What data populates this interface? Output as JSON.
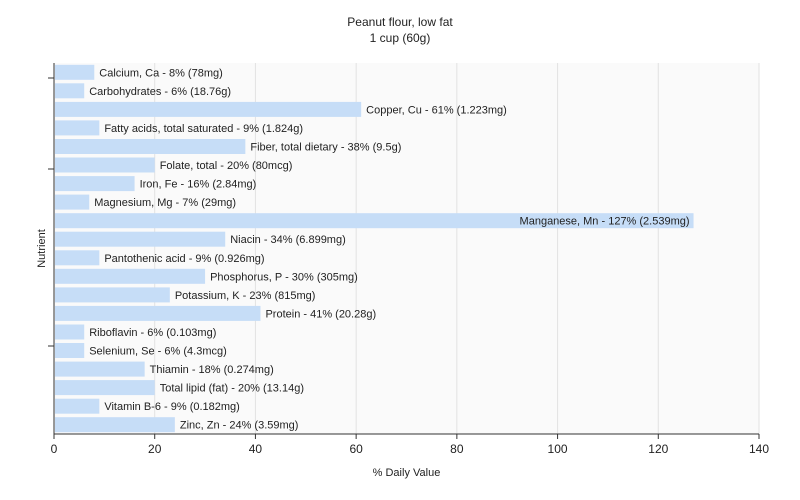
{
  "chart_data": {
    "type": "bar",
    "orientation": "horizontal",
    "title": "Peanut flour, low fat",
    "subtitle": "1 cup (60g)",
    "xlabel": "% Daily Value",
    "ylabel": "Nutrient",
    "xlim": [
      0,
      140
    ],
    "xticks": [
      0,
      20,
      40,
      60,
      80,
      100,
      120,
      140
    ],
    "grid": true,
    "bar_color": "#c6ddf7",
    "categories": [
      "Calcium, Ca",
      "Carbohydrates",
      "Copper, Cu",
      "Fatty acids, total saturated",
      "Fiber, total dietary",
      "Folate, total",
      "Iron, Fe",
      "Magnesium, Mg",
      "Manganese, Mn",
      "Niacin",
      "Pantothenic acid",
      "Phosphorus, P",
      "Potassium, K",
      "Protein",
      "Riboflavin",
      "Selenium, Se",
      "Thiamin",
      "Total lipid (fat)",
      "Vitamin B-6",
      "Zinc, Zn"
    ],
    "values": [
      8,
      6,
      61,
      9,
      38,
      20,
      16,
      7,
      127,
      34,
      9,
      30,
      23,
      41,
      6,
      6,
      18,
      20,
      9,
      24
    ],
    "labels": [
      "Calcium, Ca - 8% (78mg)",
      "Carbohydrates - 6% (18.76g)",
      "Copper, Cu - 61% (1.223mg)",
      "Fatty acids, total saturated - 9% (1.824g)",
      "Fiber, total dietary - 38% (9.5g)",
      "Folate, total - 20% (80mcg)",
      "Iron, Fe - 16% (2.84mg)",
      "Magnesium, Mg - 7% (29mg)",
      "Manganese, Mn - 127% (2.539mg)",
      "Niacin - 34% (6.899mg)",
      "Pantothenic acid - 9% (0.926mg)",
      "Phosphorus, P - 30% (305mg)",
      "Potassium, K - 23% (815mg)",
      "Protein - 41% (20.28g)",
      "Riboflavin - 6% (0.103mg)",
      "Selenium, Se - 6% (4.3mcg)",
      "Thiamin - 18% (0.274mg)",
      "Total lipid (fat) - 20% (13.14g)",
      "Vitamin B-6 - 9% (0.182mg)",
      "Zinc, Zn - 24% (3.59mg)"
    ]
  }
}
